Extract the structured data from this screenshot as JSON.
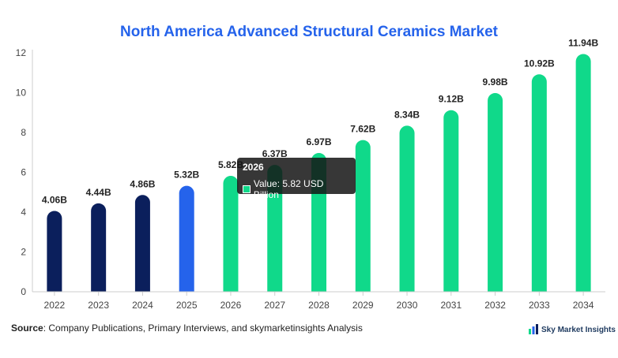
{
  "chart_data": {
    "type": "bar",
    "title": "North America Advanced Structural Ceramics Market",
    "categories": [
      "2022",
      "2023",
      "2024",
      "2025",
      "2026",
      "2027",
      "2028",
      "2029",
      "2030",
      "2031",
      "2032",
      "2033",
      "2034"
    ],
    "values": [
      4.06,
      4.44,
      4.86,
      5.32,
      5.82,
      6.37,
      6.97,
      7.62,
      8.34,
      9.12,
      9.98,
      10.92,
      11.94
    ],
    "data_labels": [
      "4.06B",
      "4.44B",
      "4.86B",
      "5.32B",
      "5.82B",
      "6.37B",
      "6.97B",
      "7.62B",
      "8.34B",
      "9.12B",
      "9.98B",
      "10.92B",
      "11.94B"
    ],
    "bar_colors": [
      "#0b1f5c",
      "#0b1f5c",
      "#0b1f5c",
      "#2563eb",
      "#10d98a",
      "#10d98a",
      "#10d98a",
      "#10d98a",
      "#10d98a",
      "#10d98a",
      "#10d98a",
      "#10d98a",
      "#10d98a"
    ],
    "y_ticks": [
      "0",
      "2",
      "4",
      "6",
      "8",
      "10",
      "12"
    ],
    "ylim": [
      0,
      12
    ],
    "xlabel": "",
    "ylabel": "",
    "grid": false
  },
  "tooltip": {
    "title": "2026",
    "value_text": "Value: 5.82 USD Billion",
    "swatch_color": "#10d98a"
  },
  "source": {
    "label": "Source",
    "text": ": Company Publications, Primary Interviews, and skymarketinsights Analysis"
  },
  "brand": {
    "name": "Sky Market Insights"
  }
}
